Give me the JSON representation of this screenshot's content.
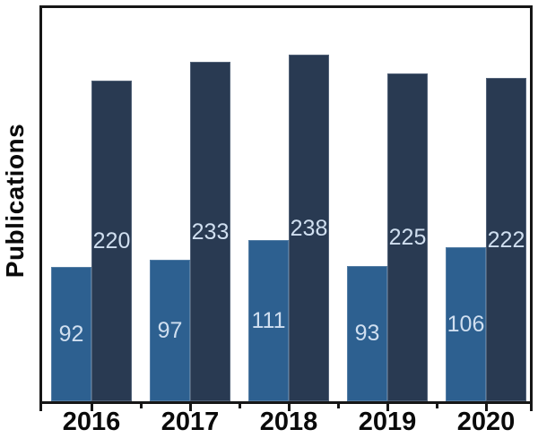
{
  "chart_data": {
    "type": "bar",
    "title": "",
    "xlabel": "",
    "ylabel": "Publications",
    "categories": [
      "2016",
      "2017",
      "2018",
      "2019",
      "2020"
    ],
    "series": [
      {
        "name": "light-blue-series",
        "color": "#2d6090",
        "values": [
          92,
          97,
          111,
          93,
          106
        ]
      },
      {
        "name": "dark-navy-series",
        "color": "#293a52",
        "values": [
          220,
          233,
          238,
          225,
          222
        ]
      }
    ],
    "ylim": [
      0,
      270
    ],
    "grid": false,
    "legend": "none",
    "bar_value_labels": true,
    "bar_label_color": "#d0dff0",
    "axis_color": "#161616"
  }
}
